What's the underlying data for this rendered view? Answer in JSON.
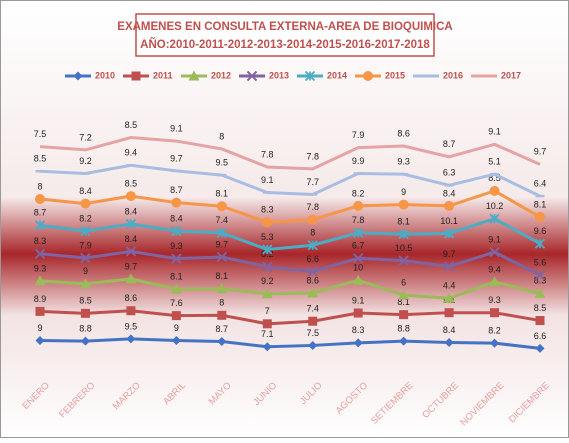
{
  "chart_data": {
    "type": "line",
    "stacked": true,
    "title": [
      "EXAMENES EN CONSULTA EXTERNA-AREA DE BIOQUIMICA",
      "AÑO:2010-2011-2012-2013-2014-2015-2016-2017-2018"
    ],
    "categories": [
      "ENERO",
      "FEBRERO",
      "MARZO",
      "ABRIL",
      "MAYO",
      "JUNIO",
      "JULIO",
      "AGOSTO",
      "SETIEMBRE",
      "OCTUBRE",
      "NOVIEMBRE",
      "DICIEMBRE"
    ],
    "ylim": [
      0,
      80
    ],
    "series": [
      {
        "name": "2010",
        "color": "#4472c4",
        "marker": "diamond",
        "values": [
          9.0,
          8.8,
          9.5,
          9.0,
          8.7,
          7.1,
          7.5,
          8.3,
          8.8,
          8.4,
          8.2,
          6.6
        ]
      },
      {
        "name": "2011",
        "color": "#c0504d",
        "marker": "square",
        "values": [
          8.9,
          8.5,
          8.6,
          7.6,
          8.0,
          7.0,
          7.4,
          9.1,
          8.1,
          9.1,
          9.3,
          8.5
        ]
      },
      {
        "name": "2012",
        "color": "#9bbb59",
        "marker": "triangle",
        "values": [
          9.3,
          9.0,
          9.7,
          8.1,
          8.1,
          9.2,
          8.6,
          10.0,
          6.0,
          4.4,
          9.4,
          8.3
        ]
      },
      {
        "name": "2013",
        "color": "#8064a2",
        "marker": "x",
        "values": [
          8.3,
          7.9,
          8.4,
          9.3,
          9.7,
          8.2,
          6.6,
          6.7,
          10.5,
          9.7,
          9.1,
          5.6
        ]
      },
      {
        "name": "2014",
        "color": "#4bacc6",
        "marker": "star",
        "values": [
          8.7,
          8.2,
          8.4,
          8.4,
          7.4,
          5.3,
          8.0,
          7.8,
          8.1,
          10.1,
          10.2,
          9.6
        ]
      },
      {
        "name": "2015",
        "color": "#f79646",
        "marker": "circle",
        "values": [
          8.0,
          8.4,
          8.5,
          8.7,
          8.1,
          8.3,
          7.8,
          8.2,
          9.0,
          8.4,
          8.5,
          8.1
        ]
      },
      {
        "name": "2016",
        "color": "#a9bde3",
        "marker": "dash",
        "values": [
          8.5,
          9.2,
          9.4,
          9.7,
          9.5,
          9.1,
          7.7,
          9.9,
          9.3,
          6.3,
          5.1,
          6.4
        ]
      },
      {
        "name": "2017",
        "color": "#e6a3a3",
        "marker": "none",
        "values": [
          7.5,
          7.2,
          8.5,
          9.1,
          8.0,
          7.8,
          7.8,
          7.9,
          8.6,
          8.7,
          9.1,
          9.7
        ]
      }
    ]
  }
}
